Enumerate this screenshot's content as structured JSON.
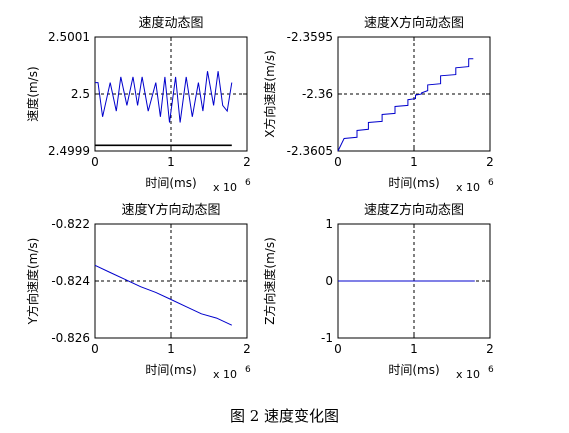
{
  "figure": {
    "caption": "图 2  速度变化图"
  },
  "chart_data": [
    {
      "type": "line",
      "title": "速度动态图",
      "xlabel": "时间(ms)",
      "ylabel": "速度(m/s)",
      "x_multiplier": "x 10",
      "x_multiplier_exp": "6",
      "xlim": [
        0,
        2
      ],
      "ylim": [
        2.4999,
        2.5001
      ],
      "xticks": [
        0,
        1,
        2
      ],
      "xtick_labels": [
        "0",
        "1",
        "2"
      ],
      "yticks": [
        2.4999,
        2.5,
        2.5001
      ],
      "ytick_labels": [
        "2.4999",
        "2.5",
        "2.5001"
      ],
      "grid": "dashed center crosshair",
      "series": [
        {
          "color": "#0000cc",
          "x": [
            0.0,
            0.04,
            0.1,
            0.2,
            0.28,
            0.34,
            0.42,
            0.5,
            0.56,
            0.62,
            0.7,
            0.8,
            0.86,
            0.92,
            0.98,
            1.06,
            1.12,
            1.2,
            1.28,
            1.36,
            1.42,
            1.48,
            1.56,
            1.62,
            1.68,
            1.74,
            1.8
          ],
          "y": [
            2.50002,
            2.50002,
            2.49996,
            2.50002,
            2.49997,
            2.50003,
            2.49998,
            2.50003,
            2.49998,
            2.50003,
            2.49997,
            2.50002,
            2.49996,
            2.50003,
            2.49995,
            2.50003,
            2.49995,
            2.50003,
            2.49996,
            2.50002,
            2.49997,
            2.50004,
            2.49998,
            2.50004,
            2.49998,
            2.49997,
            2.50002
          ]
        },
        {
          "color": "#000000",
          "x": [
            0,
            1.8
          ],
          "y": [
            2.49991,
            2.49991
          ]
        }
      ]
    },
    {
      "type": "line",
      "title": "速度X方向动态图",
      "xlabel": "时间(ms)",
      "ylabel": "X方向速度(m/s)",
      "x_multiplier": "x 10",
      "x_multiplier_exp": "6",
      "xlim": [
        0,
        2
      ],
      "ylim": [
        -2.3605,
        -2.3595
      ],
      "xticks": [
        0,
        1,
        2
      ],
      "xtick_labels": [
        "0",
        "1",
        "2"
      ],
      "yticks": [
        -2.3605,
        -2.36,
        -2.3595
      ],
      "ytick_labels": [
        "-2.3605",
        "-2.36",
        "-2.3595"
      ],
      "grid": "dashed center crosshair",
      "series": [
        {
          "color": "#0000cc",
          "x": [
            0.0,
            0.08,
            0.08,
            0.25,
            0.25,
            0.4,
            0.4,
            0.58,
            0.58,
            0.75,
            0.75,
            0.92,
            0.92,
            1.02,
            1.02,
            1.1,
            1.1,
            1.18,
            1.18,
            1.35,
            1.35,
            1.55,
            1.55,
            1.72,
            1.72,
            1.78
          ],
          "y": [
            -2.3605,
            -2.36039,
            -2.36039,
            -2.36038,
            -2.36032,
            -2.36031,
            -2.36025,
            -2.36024,
            -2.36018,
            -2.36017,
            -2.36011,
            -2.3601,
            -2.36005,
            -2.36004,
            -2.36001,
            -2.36,
            -2.35999,
            -2.35997,
            -2.35992,
            -2.35991,
            -2.35984,
            -2.35983,
            -2.35977,
            -2.35976,
            -2.35969,
            -2.35969
          ]
        }
      ]
    },
    {
      "type": "line",
      "title": "速度Y方向动态图",
      "xlabel": "时间(ms)",
      "ylabel": "Y方向速度(m/s)",
      "x_multiplier": "x 10",
      "x_multiplier_exp": "6",
      "xlim": [
        0,
        2
      ],
      "ylim": [
        -0.826,
        -0.822
      ],
      "xticks": [
        0,
        1,
        2
      ],
      "xtick_labels": [
        "0",
        "1",
        "2"
      ],
      "yticks": [
        -0.826,
        -0.824,
        -0.822
      ],
      "ytick_labels": [
        "-0.826",
        "-0.824",
        "-0.822"
      ],
      "grid": "dashed center crosshair",
      "series": [
        {
          "color": "#0000cc",
          "x": [
            0.0,
            0.2,
            0.4,
            0.6,
            0.8,
            1.0,
            1.2,
            1.4,
            1.6,
            1.8
          ],
          "y": [
            -0.82345,
            -0.8237,
            -0.82395,
            -0.8242,
            -0.8244,
            -0.82465,
            -0.8249,
            -0.82515,
            -0.8253,
            -0.82555
          ]
        }
      ]
    },
    {
      "type": "line",
      "title": "速度Z方向动态图",
      "xlabel": "时间(ms)",
      "ylabel": "Z方向速度(m/s)",
      "x_multiplier": "x 10",
      "x_multiplier_exp": "6",
      "xlim": [
        0,
        2
      ],
      "ylim": [
        -1,
        1
      ],
      "xticks": [
        0,
        1,
        2
      ],
      "xtick_labels": [
        "0",
        "1",
        "2"
      ],
      "yticks": [
        -1,
        0,
        1
      ],
      "ytick_labels": [
        "-1",
        "0",
        "1"
      ],
      "grid": "dashed center crosshair",
      "series": [
        {
          "color": "#0000cc",
          "x": [
            0,
            1.8
          ],
          "y": [
            0,
            0
          ]
        }
      ]
    }
  ]
}
